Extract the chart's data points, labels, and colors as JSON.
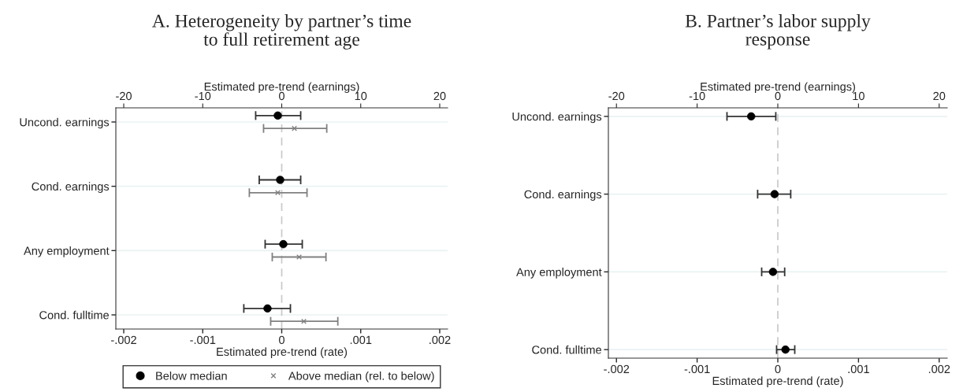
{
  "chart_data": [
    {
      "type": "scatter",
      "orientation": "horizontal",
      "title": "A. Heterogeneity by partner’s time\nto full retirement age",
      "xlabel": "Estimated pre-trend (rate)",
      "x2label": "Estimated pre-trend (earnings)",
      "categories": [
        "Uncond. earnings",
        "Cond. earnings",
        "Any employment",
        "Cond. fulltime"
      ],
      "series": [
        {
          "name": "Below median",
          "color": "#000000",
          "marker": "circle",
          "values": [
            -5e-05,
            -2e-05,
            2e-05,
            -0.00018
          ],
          "errors": [
            [
              -0.00033,
              0.00024
            ],
            [
              -0.000285,
              0.00024
            ],
            [
              -0.00021,
              0.00026
            ],
            [
              -0.00048,
              0.00011
            ]
          ]
        },
        {
          "name": "Above median (rel. to below)",
          "color": "#808080",
          "marker": "cross",
          "values": [
            0.00016,
            -5e-05,
            0.00022,
            0.00028
          ],
          "errors": [
            [
              -0.00023,
              0.00057
            ],
            [
              -0.00041,
              0.00032
            ],
            [
              -0.00012,
              0.00056
            ],
            [
              -0.00014,
              0.00071
            ]
          ]
        }
      ],
      "xlim": [
        -0.0021,
        0.0021
      ],
      "xticks": [
        {
          "value": -0.002,
          "label": "-.002"
        },
        {
          "value": -0.001,
          "label": "-.001"
        },
        0,
        {
          "value": 0.001,
          "label": ".001"
        },
        {
          "value": 0.002,
          "label": ".002"
        }
      ],
      "x2lim": [
        -21,
        21
      ],
      "x2ticks": [
        -20,
        -10,
        0,
        10,
        20
      ],
      "ref_lines": [
        {
          "axis": "x",
          "value": 0,
          "color": "#c8c8c8",
          "line_style": "dashed"
        }
      ],
      "grid": "y",
      "legend": "bottom"
    },
    {
      "type": "scatter",
      "orientation": "horizontal",
      "title": "B. Partner’s labor supply\nresponse",
      "xlabel": "Estimated pre-trend (rate)",
      "x2label": "Estimated pre-trend (earnings)",
      "categories": [
        "Uncond. earnings",
        "Cond. earnings",
        "Any employment",
        "Cond. fulltime"
      ],
      "series": [
        {
          "color": "#000000",
          "marker": "circle",
          "values": [
            -0.00033,
            -4e-05,
            -6e-05,
            9.5e-05
          ],
          "errors": [
            [
              -0.00063,
              -2.5e-05
            ],
            [
              -0.00025,
              0.00016
            ],
            [
              -0.0002,
              8.5e-05
            ],
            [
              -1.5e-05,
              0.00021
            ]
          ]
        }
      ],
      "xlim": [
        -0.0021,
        0.0021
      ],
      "xticks": [
        {
          "value": -0.002,
          "label": "-.002"
        },
        {
          "value": -0.001,
          "label": "-.001"
        },
        0,
        {
          "value": 0.001,
          "label": ".001"
        },
        {
          "value": 0.002,
          "label": ".002"
        }
      ],
      "x2lim": [
        -21,
        21
      ],
      "x2ticks": [
        -20,
        -10,
        0,
        10,
        20
      ],
      "ref_lines": [
        {
          "axis": "x",
          "value": 0,
          "color": "#c8c8c8",
          "line_style": "dashed"
        }
      ],
      "grid": "y",
      "legend": false
    }
  ]
}
